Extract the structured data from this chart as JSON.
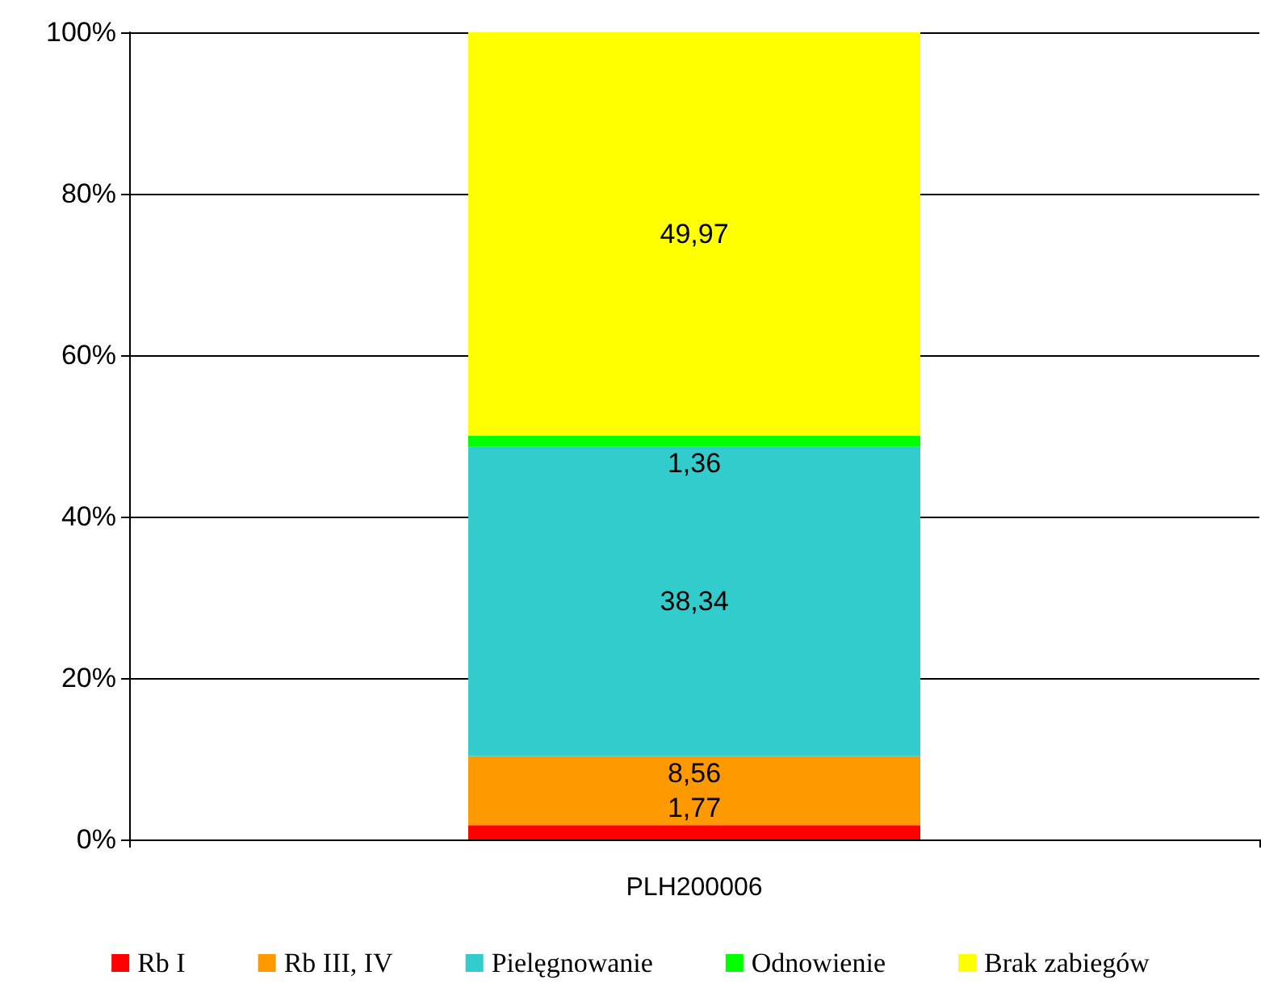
{
  "chart_data": {
    "type": "bar",
    "stacked": true,
    "categories": [
      "PLH200006"
    ],
    "series": [
      {
        "name": "Rb I",
        "color": "#ff0000",
        "values": [
          1.77
        ],
        "value_labels": [
          "1,77"
        ]
      },
      {
        "name": "Rb III, IV",
        "color": "#ff9900",
        "values": [
          8.56
        ],
        "value_labels": [
          "8,56"
        ]
      },
      {
        "name": "Pielęgnowanie",
        "color": "#33cccc",
        "values": [
          38.34
        ],
        "value_labels": [
          "38,34"
        ]
      },
      {
        "name": "Odnowienie",
        "color": "#00ff00",
        "values": [
          1.36
        ],
        "value_labels": [
          "1,36"
        ]
      },
      {
        "name": "Brak zabiegów",
        "color": "#ffff00",
        "values": [
          49.97
        ],
        "value_labels": [
          "49,97"
        ]
      }
    ],
    "ylim": [
      0,
      100
    ],
    "yticks": [
      {
        "value": 0,
        "label": "0%"
      },
      {
        "value": 20,
        "label": "20%"
      },
      {
        "value": 40,
        "label": "40%"
      },
      {
        "value": 60,
        "label": "60%"
      },
      {
        "value": 80,
        "label": "80%"
      },
      {
        "value": 100,
        "label": "100%"
      }
    ],
    "grid": "y",
    "legend": "bottom"
  }
}
